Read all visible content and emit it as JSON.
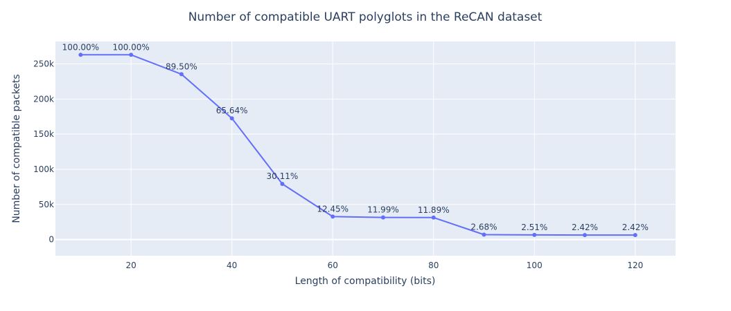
{
  "chart_data": {
    "type": "line",
    "title": "Number of compatible UART polyglots in the ReCAN dataset",
    "xlabel": "Length of compatibility (bits)",
    "ylabel": "Number of compatible packets",
    "xlim": [
      5,
      128
    ],
    "ylim": [
      -23000,
      282000
    ],
    "x_ticks": [
      20,
      40,
      60,
      80,
      100,
      120
    ],
    "x_tick_labels": [
      "20",
      "40",
      "60",
      "80",
      "100",
      "120"
    ],
    "y_ticks": [
      0,
      50000,
      100000,
      150000,
      200000,
      250000
    ],
    "y_tick_labels": [
      "0",
      "50k",
      "100k",
      "150k",
      "200k",
      "250k"
    ],
    "grid": true,
    "legend": "none",
    "series": [
      {
        "x": [
          10,
          20,
          30,
          40,
          50,
          60,
          70,
          80,
          90,
          100,
          110,
          120
        ],
        "y": [
          263000,
          263000,
          235400,
          172600,
          79200,
          32700,
          31500,
          31300,
          7050,
          6600,
          6370,
          6370
        ],
        "labels": [
          "100.00%",
          "100.00%",
          "89.50%",
          "65.64%",
          "30.11%",
          "12.45%",
          "11.99%",
          "11.89%",
          "2.68%",
          "2.51%",
          "2.42%",
          "2.42%"
        ],
        "color": "#636efa"
      }
    ],
    "colors": {
      "plot_background": "#e5ecf6",
      "grid": "#ffffff",
      "text": "#2a3f5f",
      "line": "#636efa"
    }
  }
}
